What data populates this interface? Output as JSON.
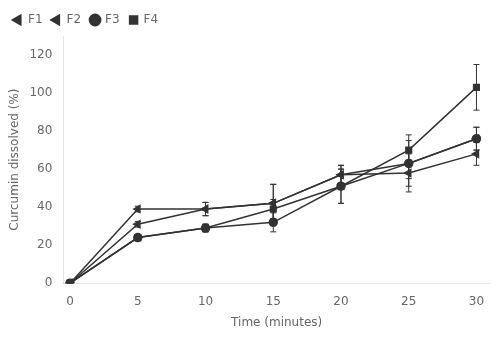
{
  "chart_data": {
    "type": "line",
    "xlabel": "Time (minutes)",
    "ylabel": "Curcumin dissolved (%)",
    "x": [
      0,
      5,
      10,
      15,
      20,
      25,
      30
    ],
    "series": [
      {
        "name": "F1",
        "color": "#333333",
        "marker": "triangle_left",
        "values": [
          0,
          39,
          39,
          42,
          57,
          58,
          68
        ],
        "errors": [
          0,
          1.5,
          3.5,
          10,
          5,
          10,
          6
        ]
      },
      {
        "name": "F2",
        "color": "#333333",
        "marker": "triangle_left",
        "values": [
          0,
          31,
          39,
          42,
          57,
          63,
          76
        ],
        "errors": [
          0,
          1.5,
          3.5,
          10,
          5,
          8,
          6
        ]
      },
      {
        "name": "F3",
        "color": "#333333",
        "marker": "circle",
        "values": [
          0,
          24,
          29,
          32,
          51,
          63,
          76
        ],
        "errors": [
          0,
          1.5,
          2,
          5,
          9,
          12,
          6
        ]
      },
      {
        "name": "F4",
        "color": "#333333",
        "marker": "square",
        "values": [
          0,
          24,
          29,
          39,
          51,
          70,
          103
        ],
        "errors": [
          0,
          1.5,
          2,
          5,
          9,
          8,
          12
        ]
      }
    ],
    "xlim": [
      -0.5,
      31
    ],
    "xticks": [
      0,
      5,
      10,
      15,
      20,
      25,
      30
    ],
    "ylim": [
      0,
      130
    ],
    "yticks": [
      0,
      20,
      40,
      60,
      80,
      100,
      120
    ],
    "grid": false,
    "legend": "upper left"
  }
}
